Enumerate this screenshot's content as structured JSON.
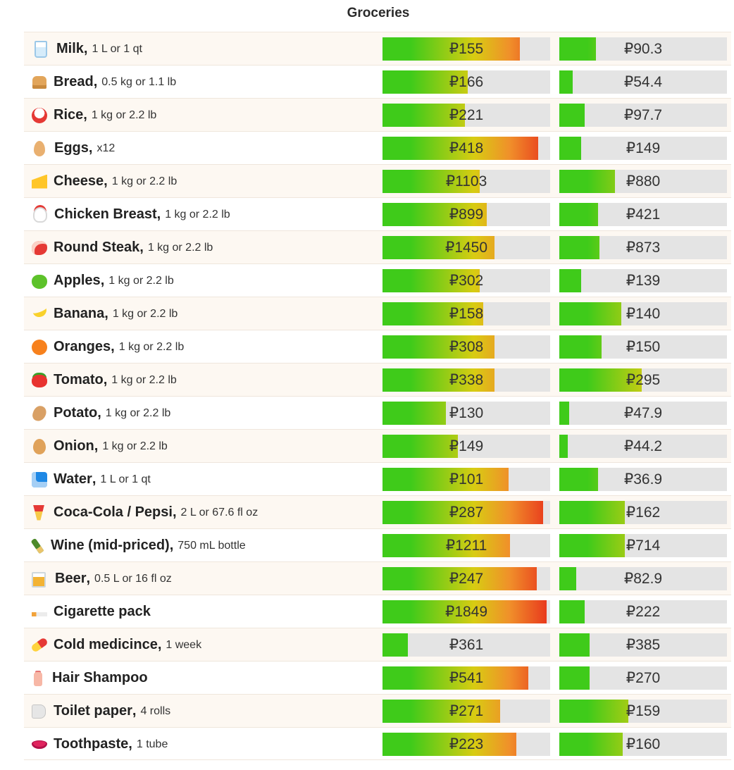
{
  "title": "Groceries",
  "rows": [
    {
      "icon": "milk-icon",
      "cls": "e-milk",
      "name": "Milk",
      "unit": "1 L or 1 qt",
      "v1": "₽155",
      "f1": 0.82,
      "v2": "₽90.3",
      "f2": 0.22
    },
    {
      "icon": "bread-icon",
      "cls": "e-bread",
      "name": "Bread",
      "unit": "0.5 kg or 1.1 lb",
      "v1": "₽166",
      "f1": 0.51,
      "v2": "₽54.4",
      "f2": 0.08
    },
    {
      "icon": "rice-icon",
      "cls": "e-rice",
      "name": "Rice",
      "unit": "1 kg or 2.2 lb",
      "v1": "₽221",
      "f1": 0.49,
      "v2": "₽97.7",
      "f2": 0.15
    },
    {
      "icon": "egg-icon",
      "cls": "e-egg",
      "name": "Eggs",
      "unit": "x12",
      "v1": "₽418",
      "f1": 0.93,
      "v2": "₽149",
      "f2": 0.13
    },
    {
      "icon": "cheese-icon",
      "cls": "e-cheese",
      "name": "Cheese",
      "unit": "1 kg or 2.2 lb",
      "v1": "₽1103",
      "f1": 0.58,
      "v2": "₽880",
      "f2": 0.33
    },
    {
      "icon": "chicken-icon",
      "cls": "e-chicken",
      "name": "Chicken Breast",
      "unit": "1 kg or 2.2 lb",
      "v1": "₽899",
      "f1": 0.62,
      "v2": "₽421",
      "f2": 0.23
    },
    {
      "icon": "steak-icon",
      "cls": "e-steak",
      "name": "Round Steak",
      "unit": "1 kg or 2.2 lb",
      "v1": "₽1450",
      "f1": 0.67,
      "v2": "₽873",
      "f2": 0.24
    },
    {
      "icon": "apple-icon",
      "cls": "e-apple",
      "name": "Apples",
      "unit": "1 kg or 2.2 lb",
      "v1": "₽302",
      "f1": 0.58,
      "v2": "₽139",
      "f2": 0.13
    },
    {
      "icon": "banana-icon",
      "cls": "e-banana",
      "name": "Banana",
      "unit": "1 kg or 2.2 lb",
      "v1": "₽158",
      "f1": 0.6,
      "v2": "₽140",
      "f2": 0.37
    },
    {
      "icon": "orange-icon",
      "cls": "e-orange",
      "name": "Oranges",
      "unit": "1 kg or 2.2 lb",
      "v1": "₽308",
      "f1": 0.67,
      "v2": "₽150",
      "f2": 0.25
    },
    {
      "icon": "tomato-icon",
      "cls": "e-tomato",
      "name": "Tomato",
      "unit": "1 kg or 2.2 lb",
      "v1": "₽338",
      "f1": 0.67,
      "v2": "₽295",
      "f2": 0.49
    },
    {
      "icon": "potato-icon",
      "cls": "e-potato",
      "name": "Potato",
      "unit": "1 kg or 2.2 lb",
      "v1": "₽130",
      "f1": 0.38,
      "v2": "₽47.9",
      "f2": 0.06
    },
    {
      "icon": "onion-icon",
      "cls": "e-onion",
      "name": "Onion",
      "unit": "1 kg or 2.2 lb",
      "v1": "₽149",
      "f1": 0.45,
      "v2": "₽44.2",
      "f2": 0.05
    },
    {
      "icon": "water-wave-icon",
      "cls": "e-water",
      "name": "Water",
      "unit": "1 L or 1 qt",
      "v1": "₽101",
      "f1": 0.75,
      "v2": "₽36.9",
      "f2": 0.23
    },
    {
      "icon": "tropical-drink-icon",
      "cls": "e-cola",
      "name": "Coca-Cola / Pepsi",
      "unit": "2 L or 67.6 fl oz",
      "v1": "₽287",
      "f1": 0.96,
      "v2": "₽162",
      "f2": 0.39
    },
    {
      "icon": "wine-bottle-icon",
      "cls": "e-wine",
      "name": "Wine (mid-priced)",
      "unit": "750 mL bottle",
      "v1": "₽1211",
      "f1": 0.76,
      "v2": "₽714",
      "f2": 0.39
    },
    {
      "icon": "beer-mug-icon",
      "cls": "e-beer",
      "name": "Beer",
      "unit": "0.5 L or 16 fl oz",
      "v1": "₽247",
      "f1": 0.92,
      "v2": "₽82.9",
      "f2": 0.1
    },
    {
      "icon": "cigarette-icon",
      "cls": "e-cig",
      "name": "Cigarette pack",
      "unit": "",
      "v1": "₽1849",
      "f1": 0.98,
      "v2": "₽222",
      "f2": 0.15
    },
    {
      "icon": "pill-icon",
      "cls": "e-pill",
      "name": "Cold medicince",
      "unit": "1 week",
      "v1": "₽361",
      "f1": 0.15,
      "v2": "₽385",
      "f2": 0.18
    },
    {
      "icon": "lotion-bottle-icon",
      "cls": "e-shampoo",
      "name": "Hair Shampoo",
      "unit": "",
      "v1": "₽541",
      "f1": 0.87,
      "v2": "₽270",
      "f2": 0.18
    },
    {
      "icon": "toilet-paper-icon",
      "cls": "e-toilet",
      "name": "Toilet paper",
      "unit": "4 rolls",
      "v1": "₽271",
      "f1": 0.7,
      "v2": "₽159",
      "f2": 0.41
    },
    {
      "icon": "lips-icon",
      "cls": "e-lips",
      "name": "Toothpaste",
      "unit": "1 tube",
      "v1": "₽223",
      "f1": 0.8,
      "v2": "₽160",
      "f2": 0.38
    }
  ],
  "colors": {
    "green": "#3fcb1a",
    "yellow": "#d8cc12",
    "orange": "#f0902a",
    "red": "#e8321c",
    "track": "#e4e4e4"
  }
}
